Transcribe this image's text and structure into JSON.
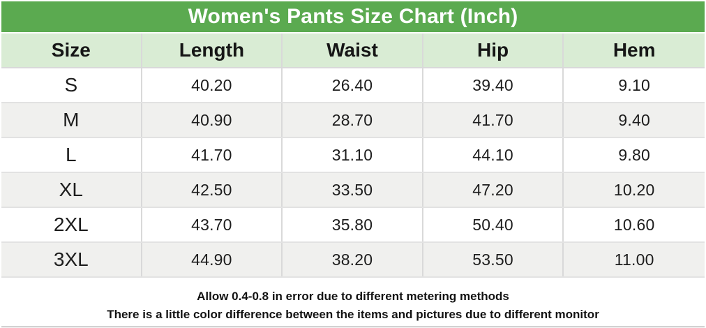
{
  "title": "Women's Pants Size Chart (Inch)",
  "colors": {
    "title_bg": "#5baa50",
    "title_text": "#ffffff",
    "header_bg": "#d9ecd4",
    "row_alt_bg": "#f0f0ee",
    "border": "#d9d9d9",
    "text": "#1d1d1d"
  },
  "table": {
    "headers": [
      "Size",
      "Length",
      "Waist",
      "Hip",
      "Hem"
    ],
    "rows": [
      [
        "S",
        "40.20",
        "26.40",
        "39.40",
        "9.10"
      ],
      [
        "M",
        "40.90",
        "28.70",
        "41.70",
        "9.40"
      ],
      [
        "L",
        "41.70",
        "31.10",
        "44.10",
        "9.80"
      ],
      [
        "XL",
        "42.50",
        "33.50",
        "47.20",
        "10.20"
      ],
      [
        "2XL",
        "43.70",
        "35.80",
        "50.40",
        "10.60"
      ],
      [
        "3XL",
        "44.90",
        "38.20",
        "53.50",
        "11.00"
      ]
    ]
  },
  "footer": {
    "line1": "Allow 0.4-0.8 in error due to different metering methods",
    "line2": "There is a little color difference between the items and pictures due to different monitor"
  },
  "chart_data": {
    "type": "table",
    "title": "Women's Pants Size Chart (Inch)",
    "unit": "inch",
    "columns": [
      "Size",
      "Length",
      "Waist",
      "Hip",
      "Hem"
    ],
    "rows": [
      [
        "S",
        40.2,
        26.4,
        39.4,
        9.1
      ],
      [
        "M",
        40.9,
        28.7,
        41.7,
        9.4
      ],
      [
        "L",
        41.7,
        31.1,
        44.1,
        9.8
      ],
      [
        "XL",
        42.5,
        33.5,
        47.2,
        10.2
      ],
      [
        "2XL",
        43.7,
        35.8,
        50.4,
        10.6
      ],
      [
        "3XL",
        44.9,
        38.2,
        53.5,
        11.0
      ]
    ],
    "notes": [
      "Allow 0.4-0.8 in error due to different metering methods",
      "There is a little color difference between the items and pictures due to different monitor"
    ]
  }
}
